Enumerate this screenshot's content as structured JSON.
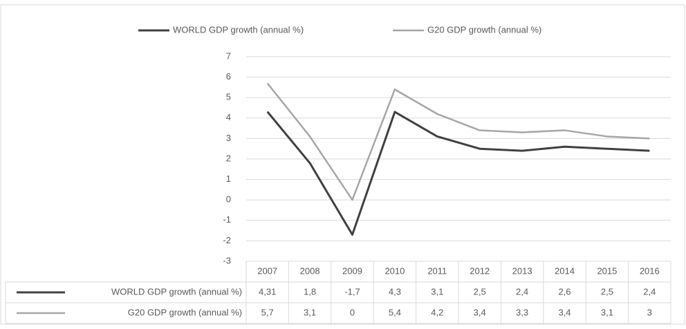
{
  "chart_data": {
    "type": "line",
    "title": "",
    "xlabel": "",
    "ylabel": "",
    "categories": [
      "2007",
      "2008",
      "2009",
      "2010",
      "2011",
      "2012",
      "2013",
      "2014",
      "2015",
      "2016"
    ],
    "series": [
      {
        "name": "WORLD GDP growth (annual %)",
        "values": [
          4.31,
          1.8,
          -1.7,
          4.3,
          3.1,
          2.5,
          2.4,
          2.6,
          2.5,
          2.4
        ],
        "labels": [
          "4,31",
          "1,8",
          "-1,7",
          "4,3",
          "3,1",
          "2,5",
          "2,4",
          "2,6",
          "2,5",
          "2,4"
        ],
        "color": "#404040"
      },
      {
        "name": "G20 GDP growth (annual %)",
        "values": [
          5.7,
          3.1,
          0,
          5.4,
          4.2,
          3.4,
          3.3,
          3.4,
          3.1,
          3
        ],
        "labels": [
          "5,7",
          "3,1",
          "0",
          "5,4",
          "4,2",
          "3,4",
          "3,3",
          "3,4",
          "3,1",
          "3"
        ],
        "color": "#a6a6a6"
      }
    ],
    "ylim": [
      -3,
      7
    ],
    "yticks": [
      "-3",
      "-2",
      "-1",
      "0",
      "1",
      "2",
      "3",
      "4",
      "5",
      "6",
      "7"
    ],
    "grid": true,
    "legend": "top-center",
    "data_table": true
  }
}
